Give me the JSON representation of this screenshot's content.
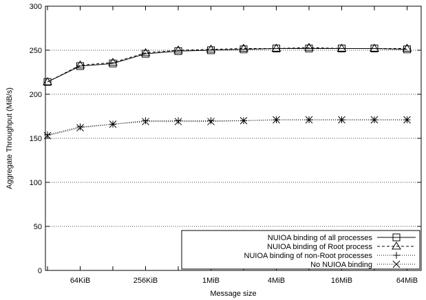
{
  "chart_data": {
    "type": "line",
    "xlabel": "Message size",
    "ylabel": "Aggregate Throughput (MiB/s)",
    "x_scale": "log2",
    "x_ticks": [
      "64KiB",
      "256KiB",
      "1MiB",
      "4MiB",
      "16MiB",
      "64MiB"
    ],
    "x": [
      "32KiB",
      "64KiB",
      "128KiB",
      "256KiB",
      "512KiB",
      "1MiB",
      "2MiB",
      "4MiB",
      "8MiB",
      "16MiB",
      "32MiB",
      "64MiB"
    ],
    "ylim": [
      0,
      300
    ],
    "y_ticks": [
      0,
      50,
      100,
      150,
      200,
      250,
      300
    ],
    "grid": "horizontal dotted",
    "legend_position": "bottom-right",
    "series": [
      {
        "name": "NUIOA binding of all processes",
        "marker": "square",
        "line": "solid",
        "values": [
          214,
          232,
          235,
          246,
          249,
          250,
          251,
          252,
          252,
          252,
          252,
          251
        ]
      },
      {
        "name": "NUIOA binding of Root process",
        "marker": "triangle",
        "line": "dashed",
        "values": [
          214,
          233,
          236,
          247,
          250,
          251,
          252,
          252,
          253,
          252,
          252,
          252
        ]
      },
      {
        "name": "NUIOA binding of non-Root processes",
        "marker": "plus",
        "line": "dotted",
        "values": [
          154,
          163,
          166,
          170,
          170,
          170,
          170,
          171,
          171,
          171,
          171,
          171
        ]
      },
      {
        "name": "No NUIOA binding",
        "marker": "x",
        "line": "dotted",
        "values": [
          153,
          162,
          166,
          169,
          169,
          169,
          170,
          171,
          171,
          171,
          171,
          171
        ]
      }
    ]
  }
}
